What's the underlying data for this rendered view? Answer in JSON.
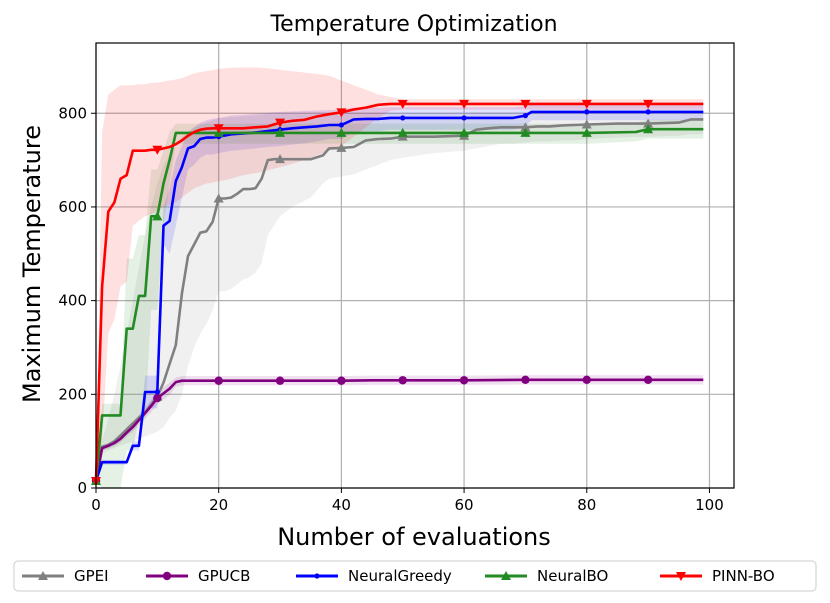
{
  "chart_data": {
    "type": "line",
    "title": "Temperature Optimization",
    "xlabel": "Number of evaluations",
    "ylabel": "Maximum Temperature",
    "xlim": [
      0,
      104
    ],
    "ylim": [
      0,
      950
    ],
    "xticks": [
      0,
      20,
      40,
      60,
      80,
      100
    ],
    "yticks": [
      0,
      200,
      400,
      600,
      800
    ],
    "grid": true,
    "legend_position": "bottom",
    "series": [
      {
        "name": "GPEI",
        "color": "#808080",
        "marker": "triangle-up",
        "x": [
          0,
          1,
          2,
          3,
          4,
          5,
          6,
          7,
          8,
          9,
          10,
          11,
          12,
          13,
          14,
          15,
          16,
          17,
          18,
          19,
          20,
          21,
          22,
          23,
          24,
          25,
          26,
          27,
          28,
          29,
          30,
          32,
          35,
          37,
          38,
          40,
          42,
          44,
          46,
          48,
          50,
          55,
          60,
          62,
          64,
          66,
          68,
          70,
          72,
          74,
          76,
          78,
          80,
          85,
          90,
          95,
          97,
          99
        ],
        "y": [
          15,
          88,
          92,
          100,
          112,
          125,
          138,
          150,
          162,
          178,
          195,
          225,
          265,
          305,
          415,
          495,
          520,
          545,
          548,
          568,
          618,
          618,
          620,
          628,
          638,
          638,
          640,
          660,
          700,
          702,
          702,
          702,
          702,
          710,
          725,
          726,
          728,
          742,
          745,
          746,
          750,
          750,
          752,
          765,
          768,
          770,
          770,
          770,
          772,
          772,
          774,
          775,
          776,
          778,
          778,
          780,
          787,
          787
        ],
        "band_upper": [
          15,
          100,
          150,
          200,
          260,
          330,
          400,
          470,
          540,
          600,
          650,
          690,
          710,
          730,
          750,
          760,
          770,
          775,
          780,
          785,
          790,
          790,
          792,
          792,
          794,
          795,
          795,
          796,
          798,
          798,
          798,
          798,
          798,
          799,
          800,
          800,
          800,
          800,
          801,
          801,
          801,
          801,
          801,
          802,
          802,
          802,
          802,
          802,
          802,
          802,
          802,
          802,
          802,
          803,
          803,
          803,
          803,
          803
        ],
        "band_lower": [
          15,
          75,
          80,
          85,
          90,
          95,
          100,
          105,
          110,
          115,
          120,
          130,
          150,
          165,
          200,
          260,
          300,
          330,
          350,
          380,
          420,
          420,
          425,
          435,
          445,
          450,
          460,
          480,
          540,
          560,
          580,
          600,
          620,
          650,
          660,
          665,
          670,
          680,
          690,
          700,
          705,
          715,
          720,
          725,
          730,
          735,
          735,
          738,
          740,
          740,
          742,
          742,
          745,
          748,
          750,
          752,
          755,
          755
        ],
        "markers_at": [
          0,
          10,
          20,
          30,
          40,
          50,
          60,
          70,
          80,
          90
        ]
      },
      {
        "name": "GPUCB",
        "color": "#800080",
        "marker": "circle",
        "x": [
          0,
          1,
          2,
          3,
          4,
          5,
          6,
          7,
          8,
          9,
          10,
          11,
          12,
          13,
          14,
          15,
          20,
          30,
          40,
          45,
          50,
          60,
          70,
          80,
          90,
          99
        ],
        "y": [
          15,
          85,
          90,
          96,
          105,
          118,
          130,
          145,
          160,
          175,
          192,
          202,
          212,
          226,
          229,
          229,
          229,
          229,
          229,
          230,
          230,
          230,
          231,
          231,
          231,
          231
        ],
        "band_upper": [
          15,
          90,
          96,
          103,
          113,
          126,
          140,
          156,
          172,
          188,
          205,
          215,
          225,
          236,
          239,
          239,
          239,
          239,
          239,
          240,
          240,
          240,
          241,
          241,
          241,
          241
        ],
        "band_lower": [
          15,
          80,
          84,
          89,
          97,
          110,
          120,
          134,
          148,
          162,
          179,
          189,
          199,
          216,
          219,
          219,
          219,
          219,
          219,
          220,
          220,
          220,
          221,
          221,
          221,
          221
        ],
        "markers_at": [
          0,
          10,
          20,
          30,
          40,
          50,
          60,
          70,
          80,
          90
        ]
      },
      {
        "name": "NeuralGreedy",
        "color": "#0000ff",
        "marker": "point",
        "x": [
          0,
          1,
          2,
          3,
          4,
          5,
          6,
          7,
          8,
          9,
          10,
          11,
          12,
          13,
          14,
          15,
          16,
          17,
          18,
          19,
          20,
          22,
          24,
          26,
          28,
          30,
          32,
          34,
          36,
          38,
          40,
          42,
          44,
          46,
          48,
          50,
          52,
          55,
          58,
          60,
          62,
          64,
          66,
          68,
          70,
          71,
          72,
          75,
          80,
          85,
          90,
          95,
          99
        ],
        "y": [
          15,
          55,
          55,
          55,
          55,
          55,
          90,
          90,
          205,
          205,
          205,
          560,
          570,
          655,
          685,
          725,
          730,
          745,
          748,
          748,
          750,
          755,
          757,
          759,
          762,
          765,
          768,
          770,
          772,
          775,
          775,
          787,
          788,
          788,
          790,
          790,
          790,
          790,
          790,
          790,
          790,
          790,
          790,
          790,
          795,
          803,
          803,
          803,
          803,
          803,
          803,
          803,
          803
        ],
        "band_upper": [
          15,
          60,
          60,
          60,
          60,
          60,
          100,
          100,
          240,
          240,
          240,
          600,
          640,
          700,
          730,
          760,
          770,
          780,
          785,
          788,
          790,
          795,
          797,
          799,
          801,
          803,
          804,
          805,
          806,
          807,
          808,
          812,
          812,
          812,
          813,
          813,
          813,
          813,
          813,
          813,
          813,
          813,
          813,
          813,
          815,
          818,
          818,
          818,
          818,
          818,
          818,
          818,
          818
        ],
        "band_lower": [
          15,
          50,
          50,
          50,
          50,
          50,
          80,
          80,
          170,
          170,
          170,
          520,
          500,
          560,
          620,
          680,
          690,
          705,
          712,
          712,
          715,
          720,
          722,
          725,
          728,
          730,
          733,
          736,
          740,
          745,
          745,
          760,
          762,
          762,
          765,
          765,
          765,
          765,
          765,
          765,
          765,
          765,
          765,
          765,
          772,
          785,
          785,
          785,
          785,
          785,
          785,
          785,
          785
        ],
        "markers_at": [
          0,
          10,
          20,
          30,
          40,
          50,
          60,
          70,
          80,
          90
        ]
      },
      {
        "name": "NeuralBO",
        "color": "#228b22",
        "marker": "triangle-up",
        "x": [
          0,
          1,
          2,
          3,
          4,
          5,
          6,
          7,
          8,
          9,
          10,
          11,
          12,
          13,
          15,
          20,
          25,
          30,
          40,
          50,
          60,
          70,
          80,
          88,
          90,
          95,
          99
        ],
        "y": [
          15,
          155,
          155,
          155,
          155,
          340,
          340,
          410,
          410,
          580,
          580,
          650,
          700,
          758,
          758,
          758,
          758,
          758,
          758,
          758,
          758,
          758,
          758,
          760,
          766,
          766,
          766
        ],
        "band_upper": [
          15,
          180,
          180,
          180,
          180,
          490,
          490,
          540,
          540,
          680,
          680,
          720,
          760,
          778,
          778,
          778,
          778,
          778,
          778,
          778,
          778,
          778,
          778,
          780,
          786,
          786,
          786
        ],
        "band_lower": [
          15,
          0,
          0,
          0,
          0,
          80,
          80,
          150,
          150,
          380,
          380,
          560,
          650,
          735,
          735,
          735,
          735,
          735,
          735,
          735,
          735,
          735,
          735,
          740,
          746,
          746,
          746
        ],
        "markers_at": [
          0,
          10,
          20,
          30,
          40,
          50,
          60,
          70,
          80,
          90
        ]
      },
      {
        "name": "PINN-BO",
        "color": "#ff0000",
        "marker": "triangle-down",
        "x": [
          0,
          1,
          2,
          3,
          4,
          5,
          6,
          7,
          8,
          9,
          10,
          11,
          12,
          13,
          14,
          15,
          16,
          17,
          18,
          19,
          20,
          22,
          24,
          26,
          28,
          30,
          32,
          34,
          36,
          38,
          40,
          42,
          44,
          46,
          48,
          50,
          55,
          60,
          65,
          70,
          75,
          80,
          85,
          90,
          95,
          99
        ],
        "y": [
          15,
          430,
          590,
          610,
          660,
          668,
          720,
          720,
          720,
          722,
          722,
          725,
          728,
          734,
          742,
          752,
          760,
          765,
          767,
          768,
          768,
          768,
          768,
          770,
          772,
          780,
          784,
          786,
          793,
          798,
          802,
          808,
          812,
          818,
          820,
          820,
          820,
          820,
          820,
          820,
          820,
          820,
          820,
          820,
          820,
          820
        ],
        "band_upper": [
          15,
          760,
          840,
          850,
          860,
          860,
          860,
          862,
          862,
          865,
          865,
          868,
          870,
          872,
          875,
          880,
          885,
          888,
          890,
          892,
          895,
          897,
          898,
          898,
          896,
          893,
          890,
          887,
          884,
          880,
          870,
          860,
          850,
          840,
          835,
          830,
          830,
          830,
          830,
          830,
          830,
          830,
          830,
          830,
          830,
          830
        ],
        "band_lower": [
          15,
          100,
          330,
          360,
          430,
          440,
          560,
          570,
          580,
          585,
          590,
          600,
          605,
          610,
          620,
          630,
          640,
          645,
          650,
          652,
          655,
          660,
          668,
          672,
          678,
          685,
          692,
          700,
          710,
          720,
          730,
          750,
          770,
          790,
          805,
          808,
          808,
          808,
          808,
          808,
          808,
          808,
          808,
          808,
          808,
          808
        ],
        "markers_at": [
          0,
          10,
          20,
          30,
          40,
          50,
          60,
          70,
          80,
          90
        ]
      }
    ]
  }
}
